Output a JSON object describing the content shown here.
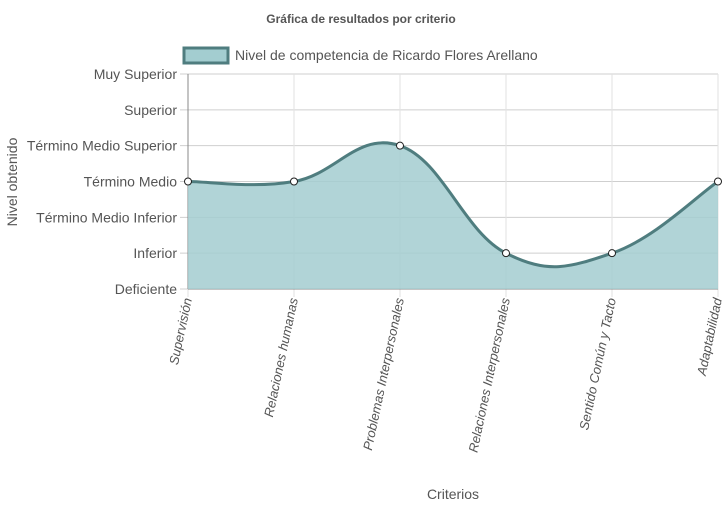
{
  "chart_data": {
    "type": "line",
    "title": "Gráfica de resultados por criterio",
    "xlabel": "Criterios",
    "ylabel": "Nivel obtenido",
    "categories": [
      "Supervisión",
      "Relaciones humanas",
      "Problemas Interpersonales",
      "Relaciones Interpersonales",
      "Sentido Común y Tacto",
      "Adaptabilidad"
    ],
    "y_levels": [
      "Deficiente",
      "Inferior",
      "Término Medio Inferior",
      "Término Medio",
      "Término Medio Superior",
      "Superior",
      "Muy Superior"
    ],
    "ylim": [
      0,
      6
    ],
    "grid": true,
    "legend_position": "top",
    "series": [
      {
        "name": "Nivel de competencia de Ricardo Flores Arellano",
        "values": [
          3,
          3,
          4,
          1,
          1,
          3
        ],
        "fill": true,
        "smooth": true,
        "fill_color": "#a3cdd0",
        "line_color": "#4f7d7f"
      }
    ]
  }
}
